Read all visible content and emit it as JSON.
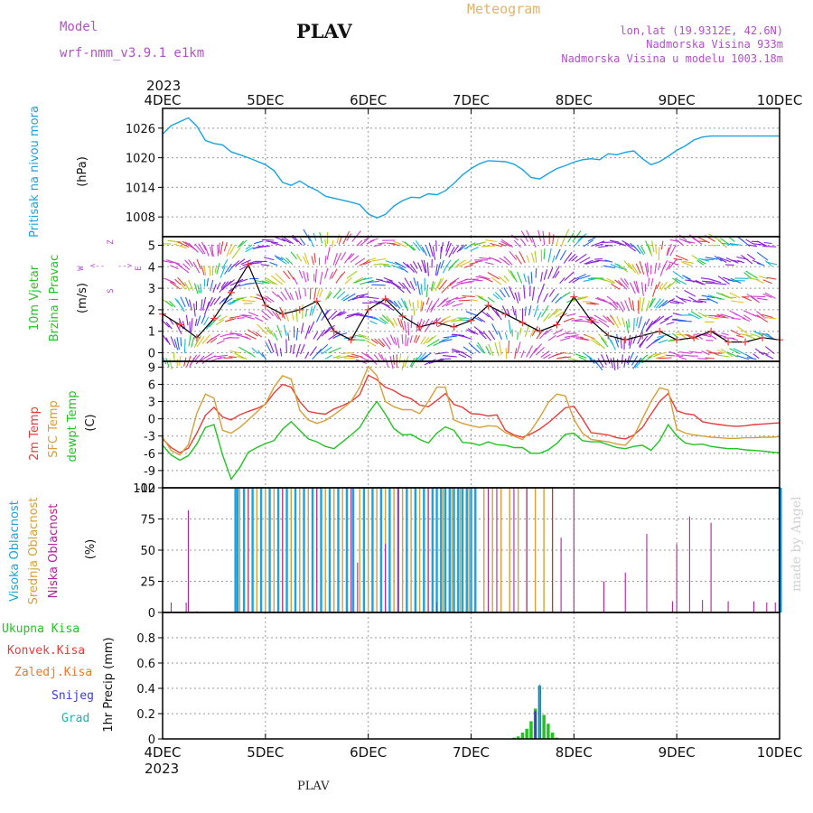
{
  "header": {
    "model_label": "Model",
    "model_name": "wrf-nmm_v3.9.1 e1km",
    "station": "PLAV",
    "meteogram_label": "Meteogram",
    "coords": "lon,lat (19.9312E, 42.6N)",
    "altitude": "Nadmorska Visina 933m",
    "model_altitude": "Nadmorska Visina u modelu 1003.18m",
    "footer_station": "PLAV",
    "credit": "made by Angel"
  },
  "time_axis": {
    "year": "2023",
    "labels": [
      "4DEC",
      "5DEC",
      "6DEC",
      "7DEC",
      "8DEC",
      "9DEC",
      "10DEC"
    ],
    "range_hours": [
      0,
      144
    ]
  },
  "colors": {
    "pressure": "#1aa3e0",
    "temp2m": "#e83c3c",
    "sfc_temp": "#d4a038",
    "dewpoint": "#22c422",
    "high_cloud": "#1aa3e0",
    "mid_cloud": "#d4a038",
    "low_cloud": "#b4229c",
    "total_precip": "#22c422",
    "convective": "#e83c3c",
    "frozen": "#f07828",
    "snow": "#3c3cd0",
    "graupel": "#18b4b4"
  },
  "chart_data": [
    {
      "type": "line",
      "panel": "pressure",
      "ylabel_main": "Pritisak na nivou mora",
      "ylabel_unit": "(hPa)",
      "yticks": [
        "1026",
        "1020",
        "1014",
        "1008"
      ],
      "ylim": [
        1004,
        1030
      ],
      "grid": true,
      "series": [
        {
          "x": [
            0,
            2,
            4,
            6,
            8,
            10,
            12,
            14,
            16,
            18,
            20,
            22,
            24,
            26,
            28,
            30,
            32,
            34,
            36,
            38,
            40,
            42,
            44,
            46,
            48,
            50,
            52,
            54,
            56,
            58,
            60,
            62,
            64,
            66,
            68,
            70,
            72,
            74,
            76,
            78,
            80,
            82,
            84,
            86,
            88,
            90,
            92,
            94,
            96,
            98,
            100,
            102,
            104,
            106,
            108,
            110,
            112,
            114,
            116,
            118,
            120,
            122,
            124,
            126,
            128,
            130,
            132,
            134,
            136,
            138,
            140,
            142,
            144
          ],
          "y": [
            1024.8,
            1026.5,
            1027.3,
            1028.1,
            1026.4,
            1023.5,
            1022.9,
            1022.6,
            1021.2,
            1020.6,
            1020.0,
            1019.3,
            1018.6,
            1017.4,
            1015.0,
            1014.4,
            1015.3,
            1014.2,
            1013.4,
            1012.2,
            1011.8,
            1011.4,
            1011.0,
            1010.5,
            1008.6,
            1007.8,
            1008.5,
            1010.2,
            1011.3,
            1012.0,
            1011.9,
            1012.7,
            1012.5,
            1013.3,
            1014.8,
            1016.5,
            1017.8,
            1018.8,
            1019.4,
            1019.3,
            1019.2,
            1018.7,
            1017.6,
            1016.0,
            1015.7,
            1016.8,
            1017.8,
            1018.4,
            1019.1,
            1019.6,
            1019.8,
            1019.6,
            1020.8,
            1020.6,
            1021.1,
            1021.4,
            1019.8,
            1018.6,
            1019.2,
            1020.3,
            1021.5,
            1022.4,
            1023.6,
            1024.2,
            1024.4,
            1024.4,
            1024.4,
            1024.4,
            1024.4,
            1024.4,
            1024.4,
            1024.4,
            1024.4
          ]
        }
      ]
    },
    {
      "type": "vector",
      "panel": "wind",
      "ylabel_main": "10m Vjetar",
      "ylabel_sub": "Brzina i Pravac",
      "ylabel_unit": "(m/s)",
      "compass_labels": [
        "Z",
        "W",
        "E",
        "<--",
        "-->",
        "S"
      ],
      "yticks": [
        "5",
        "4",
        "3",
        "2",
        "1",
        "0"
      ],
      "ylim": [
        -0.4,
        5.4
      ],
      "series": [
        {
          "name": "speed",
          "x": [
            0,
            4,
            8,
            12,
            16,
            20,
            24,
            28,
            32,
            36,
            40,
            44,
            48,
            52,
            56,
            60,
            64,
            68,
            72,
            76,
            80,
            84,
            88,
            92,
            96,
            100,
            104,
            108,
            112,
            116,
            120,
            124,
            128,
            132,
            136,
            140,
            144
          ],
          "y": [
            1.8,
            1.3,
            0.7,
            1.6,
            2.8,
            4.1,
            2.2,
            1.8,
            2.0,
            2.4,
            1.0,
            0.6,
            2.0,
            2.5,
            1.7,
            1.2,
            1.4,
            1.2,
            1.5,
            2.2,
            1.8,
            1.4,
            1.0,
            1.3,
            2.6,
            1.5,
            0.8,
            0.6,
            0.8,
            1.0,
            0.6,
            0.7,
            1.0,
            0.5,
            0.5,
            0.7,
            0.6
          ]
        }
      ]
    },
    {
      "type": "line",
      "panel": "temperature",
      "ylabel_lines": [
        "2m Temp",
        "SFC Temp",
        "dewpt Temp"
      ],
      "ylabel_unit": "(C)",
      "yticks": [
        "9",
        "6",
        "3",
        "0",
        "-3",
        "-6",
        "-9",
        "-12"
      ],
      "ylim": [
        -12,
        10
      ],
      "grid": true,
      "series": [
        {
          "name": "2m Temp",
          "x": [
            0,
            2,
            4,
            6,
            8,
            10,
            12,
            14,
            16,
            18,
            20,
            22,
            24,
            26,
            28,
            30,
            32,
            34,
            36,
            38,
            40,
            42,
            44,
            46,
            48,
            50,
            52,
            54,
            56,
            58,
            60,
            62,
            64,
            66,
            68,
            70,
            72,
            74,
            76,
            78,
            80,
            82,
            84,
            86,
            88,
            90,
            92,
            94,
            96,
            98,
            100,
            102,
            104,
            106,
            108,
            110,
            112,
            114,
            116,
            118,
            120,
            122,
            124,
            126,
            128,
            130,
            132,
            134,
            136,
            138,
            140,
            142,
            144
          ],
          "y": [
            -3.5,
            -5.0,
            -5.9,
            -5.1,
            -2.5,
            0.6,
            2.0,
            0.3,
            -0.2,
            0.7,
            1.3,
            1.8,
            2.5,
            4.5,
            6.0,
            5.5,
            3.0,
            1.3,
            1.0,
            0.8,
            1.7,
            2.3,
            3.0,
            4.2,
            7.6,
            6.8,
            5.5,
            4.9,
            4.0,
            3.5,
            2.4,
            2.1,
            3.2,
            4.4,
            2.5,
            2.0,
            0.9,
            0.8,
            0.5,
            0.7,
            -2.0,
            -2.8,
            -3.2,
            -2.6,
            -1.8,
            -0.7,
            0.6,
            1.9,
            2.2,
            0.0,
            -2.4,
            -2.6,
            -2.8,
            -3.3,
            -3.5,
            -2.8,
            -1.5,
            0.8,
            3.0,
            4.4,
            1.4,
            0.9,
            0.7,
            -0.5,
            -0.8,
            -1.0,
            -1.2,
            -1.3,
            -1.2,
            -1.0,
            -0.9,
            -0.8,
            -0.7
          ]
        },
        {
          "name": "SFC Temp",
          "x": [
            0,
            2,
            4,
            6,
            8,
            10,
            12,
            14,
            16,
            18,
            20,
            22,
            24,
            26,
            28,
            30,
            32,
            34,
            36,
            38,
            40,
            42,
            44,
            46,
            48,
            50,
            52,
            54,
            56,
            58,
            60,
            62,
            64,
            66,
            68,
            70,
            72,
            74,
            76,
            78,
            80,
            82,
            84,
            86,
            88,
            90,
            92,
            94,
            96,
            98,
            100,
            102,
            104,
            106,
            108,
            110,
            112,
            114,
            116,
            118,
            120,
            122,
            124,
            126,
            128,
            130,
            132,
            134,
            136,
            138,
            140,
            142,
            144
          ],
          "y": [
            -3.2,
            -5.5,
            -6.3,
            -4.5,
            1.0,
            4.3,
            3.6,
            -2.0,
            -2.5,
            -1.5,
            -0.2,
            1.2,
            2.6,
            5.5,
            7.5,
            6.9,
            1.5,
            -0.2,
            -0.8,
            -0.3,
            0.7,
            1.8,
            3.0,
            5.5,
            9.1,
            7.5,
            3.0,
            2.1,
            1.6,
            1.6,
            0.9,
            3.0,
            5.5,
            5.5,
            -0.2,
            -0.8,
            -1.2,
            -1.5,
            -1.2,
            -1.3,
            -2.4,
            -3.0,
            -3.6,
            -2.0,
            0.2,
            2.8,
            4.3,
            4.0,
            -0.1,
            -2.5,
            -3.6,
            -3.8,
            -4.0,
            -4.4,
            -4.6,
            -3.0,
            0.0,
            3.0,
            5.4,
            5.0,
            -1.8,
            -2.5,
            -2.8,
            -3.0,
            -3.2,
            -3.3,
            -3.4,
            -3.4,
            -3.3,
            -3.3,
            -3.2,
            -3.2,
            -3.1
          ]
        },
        {
          "name": "dewpt Temp",
          "x": [
            0,
            2,
            4,
            6,
            8,
            10,
            12,
            14,
            16,
            18,
            20,
            22,
            24,
            26,
            28,
            30,
            32,
            34,
            36,
            38,
            40,
            42,
            44,
            46,
            48,
            50,
            52,
            54,
            56,
            58,
            60,
            62,
            64,
            66,
            68,
            70,
            72,
            74,
            76,
            78,
            80,
            82,
            84,
            86,
            88,
            90,
            92,
            94,
            96,
            98,
            100,
            102,
            104,
            106,
            108,
            110,
            112,
            114,
            116,
            118,
            120,
            122,
            124,
            126,
            128,
            130,
            132,
            134,
            136,
            138,
            140,
            142,
            144
          ],
          "y": [
            -4.6,
            -6.3,
            -7.2,
            -6.4,
            -4.4,
            -1.5,
            -1.0,
            -6.3,
            -10.5,
            -8.5,
            -5.8,
            -5.0,
            -4.3,
            -3.8,
            -1.8,
            -0.5,
            -2.0,
            -3.5,
            -4.0,
            -4.8,
            -5.2,
            -4.0,
            -2.8,
            -1.5,
            1.0,
            3.0,
            0.8,
            -1.7,
            -2.8,
            -2.7,
            -3.6,
            -4.2,
            -2.5,
            -1.4,
            -2.0,
            -4.1,
            -4.2,
            -4.6,
            -4.0,
            -4.5,
            -4.6,
            -5.0,
            -5.0,
            -6.0,
            -6.0,
            -5.4,
            -4.3,
            -2.7,
            -2.5,
            -3.8,
            -4.0,
            -4.0,
            -4.5,
            -5.0,
            -5.2,
            -4.8,
            -4.6,
            -5.5,
            -3.8,
            -1.0,
            -3.0,
            -4.2,
            -4.5,
            -4.4,
            -4.8,
            -5.0,
            -5.2,
            -5.2,
            -5.4,
            -5.5,
            -5.6,
            -5.8,
            -5.9
          ]
        }
      ]
    },
    {
      "type": "bar",
      "panel": "clouds",
      "ylabel_lines": [
        "Visoka Oblacnost",
        "Srednja Oblacnost",
        "Niska Oblacnost"
      ],
      "ylabel_unit": "(%)",
      "yticks": [
        "100",
        "75",
        "50",
        "25",
        "0"
      ],
      "ylim": [
        0,
        100
      ],
      "grid": true,
      "series": [
        {
          "name": "Visoka Oblacnost",
          "x": [
            17,
            17.5,
            19,
            21,
            23,
            25,
            27,
            29,
            31,
            33,
            35,
            37,
            39,
            41,
            43,
            44.5,
            47,
            49,
            51,
            53,
            55,
            57,
            59,
            61,
            63,
            64,
            65,
            66,
            67,
            68,
            69,
            70,
            71,
            72,
            73,
            144,
            144.3
          ],
          "y": [
            100,
            100,
            100,
            100,
            100,
            100,
            100,
            100,
            100,
            100,
            100,
            100,
            100,
            100,
            100,
            100,
            100,
            100,
            100,
            100,
            100,
            100,
            100,
            100,
            100,
            100,
            100,
            100,
            100,
            100,
            100,
            100,
            100,
            100,
            100,
            100,
            100
          ]
        },
        {
          "name": "Srednja Oblacnost",
          "x": [
            18,
            20,
            22,
            24,
            26,
            28,
            30,
            32,
            34,
            36,
            38,
            40,
            42,
            44,
            46,
            48,
            50,
            52,
            54,
            56,
            58,
            60,
            62,
            65.5,
            67.5,
            69.5,
            71.5,
            75,
            77,
            79,
            81,
            83,
            85,
            87,
            89,
            91
          ],
          "y": [
            100,
            100,
            100,
            100,
            100,
            100,
            100,
            100,
            100,
            100,
            100,
            100,
            100,
            100,
            100,
            100,
            100,
            100,
            100,
            100,
            100,
            100,
            100,
            100,
            100,
            100,
            100,
            100,
            100,
            100,
            100,
            100,
            100,
            100,
            100,
            100
          ]
        },
        {
          "name": "Niska Oblacnost",
          "x": [
            2,
            5.5,
            6,
            8,
            20,
            28,
            36,
            44,
            45.5,
            52,
            55,
            62,
            64,
            76,
            78,
            82,
            85,
            91,
            93,
            96,
            103,
            108,
            113,
            119,
            120,
            123,
            126,
            128,
            132,
            138,
            141,
            143
          ],
          "y": [
            8,
            8,
            82,
            1,
            100,
            100,
            100,
            100,
            40,
            55,
            100,
            100,
            8,
            100,
            100,
            100,
            100,
            100,
            60,
            100,
            25,
            32,
            63,
            9,
            55,
            77,
            10,
            72,
            9,
            9,
            8,
            8
          ]
        }
      ]
    },
    {
      "type": "bar",
      "panel": "precip",
      "legend": [
        "Ukupna Kisa",
        "Konvek.Kisa",
        "Zaledj.Kisa",
        "Snijeg",
        "Grad"
      ],
      "ylabel_main": "1hr Precip (mm)",
      "yticks": [
        "0.8",
        "0.6",
        "0.4",
        "0.2",
        "0"
      ],
      "ylim": [
        0,
        1.0
      ],
      "grid": true,
      "series": [
        {
          "name": "Ukupna Kisa",
          "x": [
            72,
            82,
            83,
            84,
            85,
            86,
            87,
            88,
            89,
            90,
            91,
            92
          ],
          "y": [
            0.005,
            0.01,
            0.02,
            0.05,
            0.08,
            0.14,
            0.24,
            0.42,
            0.19,
            0.12,
            0.05,
            0.01
          ]
        },
        {
          "name": "Snijeg",
          "x": [
            87,
            88
          ],
          "y": [
            0.22,
            0.42
          ]
        },
        {
          "name": "Grad",
          "x": [
            88
          ],
          "y": [
            0.43
          ]
        }
      ]
    }
  ]
}
